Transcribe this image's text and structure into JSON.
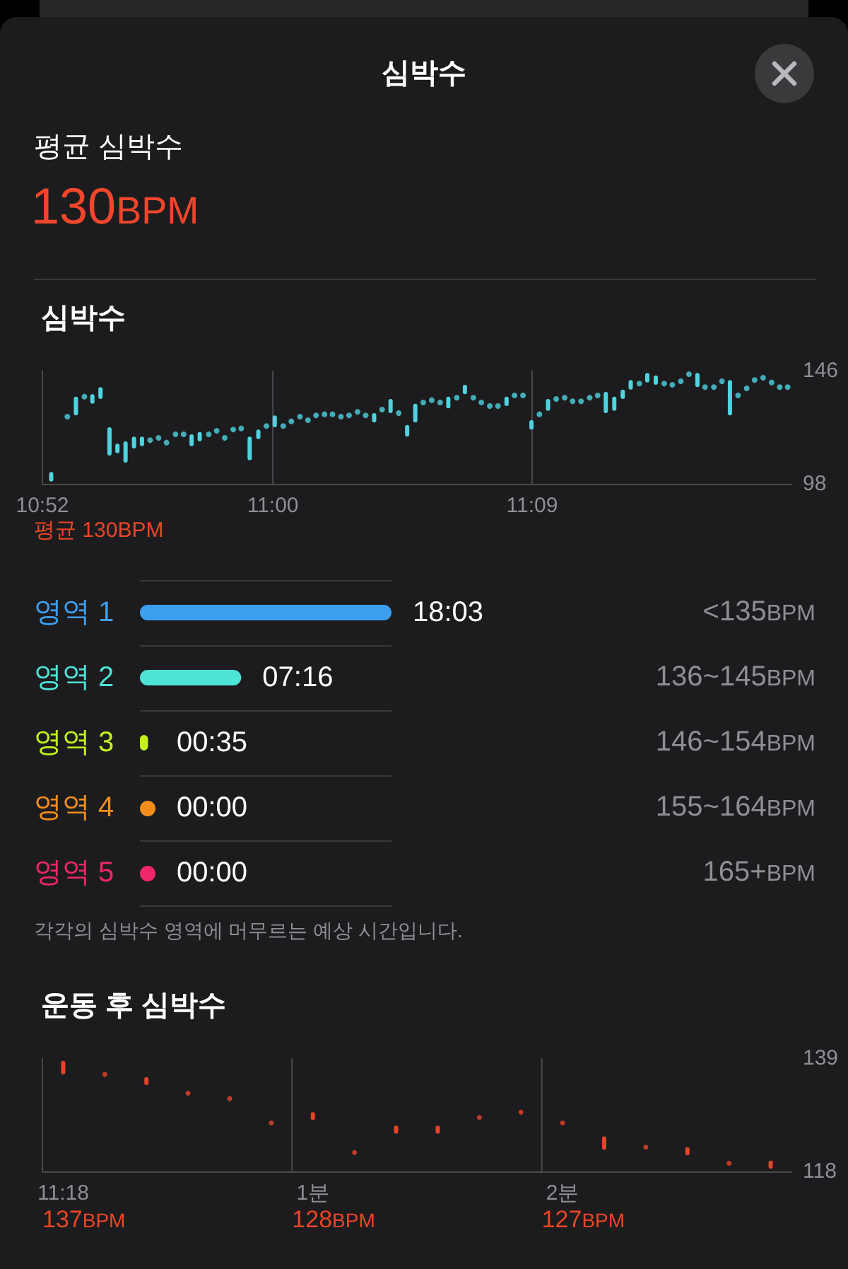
{
  "chart_data": [
    {
      "type": "other",
      "title": "심박수",
      "subtitle": "평균 심박수",
      "annotations": [
        "130BPM"
      ]
    },
    {
      "type": "bar",
      "title": "심박수",
      "series": [
        {
          "type": "bar",
          "color": "#4fd3df",
          "x": [
            10.8718,
            10.8861,
            10.8956,
            10.9003,
            10.9055,
            10.9101,
            10.9148,
            10.9197,
            10.9243,
            10.953,
            10.9577,
            10.9866,
            10.9916,
            11.0011,
            11.0586,
            11.0681,
            11.0777,
            11.0824,
            11.1015,
            11.1111,
            11.1352,
            11.1496,
            11.1592,
            11.1926,
            11.1975,
            11.2024,
            11.207,
            11.2166,
            11.2215,
            11.2456,
            11.2644
          ],
          "base": [
            99,
            127,
            132,
            134,
            110,
            111,
            107,
            113,
            114,
            114,
            116,
            108,
            117,
            122,
            124,
            128,
            118,
            124,
            130,
            136,
            131,
            121,
            129,
            128,
            129,
            134,
            138,
            141,
            140,
            139,
            127
          ],
          "values": [
            4,
            8,
            4,
            5,
            12,
            4,
            9,
            5,
            4,
            5,
            4,
            10,
            4,
            5,
            4,
            6,
            5,
            8,
            5,
            4,
            4,
            4,
            5,
            9,
            6,
            4,
            4,
            4,
            4,
            6,
            15
          ]
        },
        {
          "type": "scatter",
          "color": "#4fd3df",
          "marker": "circle",
          "x": [
            10.8811,
            10.891,
            10.929,
            10.9339,
            10.9385,
            10.9437,
            10.9484,
            10.9629,
            10.9675,
            10.9722,
            10.9771,
            10.9817,
            10.9963,
            11.006,
            11.0107,
            11.0157,
            11.0203,
            11.025,
            11.0299,
            11.0345,
            11.0394,
            11.0441,
            11.049,
            11.0537,
            11.0632,
            11.0728,
            11.087,
            11.0919,
            11.0968,
            11.1064,
            11.116,
            11.1206,
            11.1255,
            11.1302,
            11.1398,
            11.1447,
            11.1542,
            11.1639,
            11.1688,
            11.1734,
            11.1783,
            11.1833,
            11.1879,
            11.212,
            11.2264,
            11.2311,
            11.236,
            11.2407,
            11.25,
            11.2551,
            11.2598,
            11.2691,
            11.2741,
            11.2787,
            11.2836,
            11.2885,
            11.2932,
            11.2978
          ],
          "values": [
            126.5,
            135,
            116.5,
            117.5,
            115.5,
            119,
            119,
            119,
            120.5,
            117.5,
            121,
            121.5,
            122.5,
            122.5,
            124.5,
            126.5,
            125,
            127,
            127.5,
            127.5,
            126.5,
            127,
            128.5,
            127,
            129.5,
            128,
            132.5,
            133.5,
            132.5,
            134.5,
            134.5,
            132.5,
            131,
            131,
            135.5,
            135.5,
            127.5,
            134,
            134.5,
            133,
            133,
            134.5,
            135.5,
            140.5,
            140.5,
            140,
            141.5,
            144.5,
            139,
            139,
            141.5,
            135.5,
            138.5,
            142,
            143,
            141,
            139,
            139
          ]
        }
      ],
      "xlim": [
        10.8667,
        11.3
      ],
      "xticks": [
        {
          "value": 10.8667,
          "label": "10:52"
        },
        {
          "value": 11,
          "label": "11:00"
        },
        {
          "value": 11.15,
          "label": "11:09"
        }
      ],
      "ylim": [
        98,
        146
      ],
      "yticks": [
        98,
        146
      ],
      "grid": "x",
      "annotations": [
        "평균 130BPM"
      ]
    },
    {
      "type": "bar",
      "orientation": "horizontal",
      "categories": [
        "영역 1",
        "영역 2",
        "영역 3",
        "영역 4",
        "영역 5"
      ],
      "y2_categories": [
        "<135BPM",
        "136~145BPM",
        "146~154BPM",
        "155~164BPM",
        "165+BPM"
      ],
      "values": [
        1083,
        436,
        35,
        0,
        0
      ],
      "value_labels": [
        "18:03",
        "07:16",
        "00:35",
        "00:00",
        "00:00"
      ],
      "colors": [
        "#3d9ff0",
        "#4de3d6",
        "#c3f21d",
        "#f28d1c",
        "#f0266a"
      ],
      "grid": "y",
      "annotations": [
        "각각의 심박수 영역에 머무르는 예상 시간입니다."
      ]
    },
    {
      "type": "bar",
      "title": "운동 후 심박수",
      "categories": [
        "11:18",
        null,
        null,
        null,
        null,
        null,
        "1분",
        null,
        null,
        null,
        null,
        null,
        "2분",
        null,
        null,
        null,
        null,
        null
      ],
      "series": [
        {
          "type": "bar",
          "color": "#e8432a",
          "base": [
            136,
            null,
            134,
            null,
            null,
            null,
            127.5,
            null,
            125,
            125,
            null,
            null,
            null,
            122,
            null,
            121,
            null,
            118.5
          ],
          "values": [
            2.5,
            null,
            1.5,
            null,
            null,
            null,
            1.5,
            null,
            1.5,
            1.5,
            null,
            null,
            null,
            2.5,
            null,
            1.5,
            null,
            1.5
          ]
        },
        {
          "type": "scatter",
          "color": "#e8432a",
          "marker": "circle",
          "values": [
            null,
            136,
            null,
            132.5,
            131.5,
            127,
            null,
            121.5,
            null,
            null,
            128,
            129,
            127,
            null,
            122.5,
            null,
            119.5,
            null
          ]
        }
      ],
      "ylim": [
        118,
        139
      ],
      "yticks": [
        118,
        139
      ],
      "grid": "x",
      "annotations": [
        "137BPM",
        "128BPM",
        "127BPM"
      ]
    }
  ]
}
